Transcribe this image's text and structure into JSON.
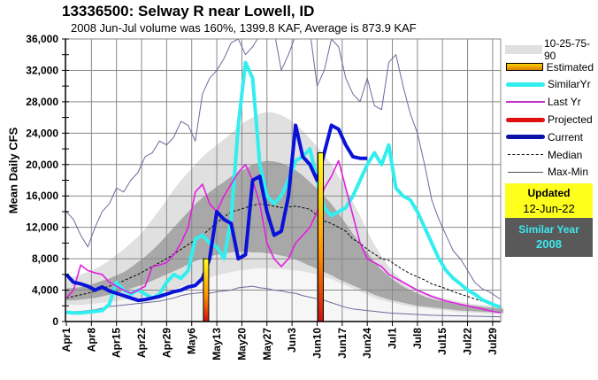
{
  "chart_data": {
    "type": "line",
    "title": "13336500: Selway R near Lowell, ID",
    "subtitle": "2008 Jun-Jul volume was 160%, 1399.8 KAF, Average is 873.9 KAF",
    "ylabel": "Mean Daily CFS",
    "xlabel": "",
    "ylim": [
      0,
      36000
    ],
    "y_ticks": [
      0,
      4000,
      8000,
      12000,
      16000,
      20000,
      24000,
      28000,
      32000,
      36000
    ],
    "y_tick_labels": [
      "0",
      "4,000",
      "8,000",
      "12,000",
      "16,000",
      "20,000",
      "24,000",
      "28,000",
      "32,000",
      "36,000"
    ],
    "x_start": "Apr1",
    "x_days": 122,
    "x_ticks": [
      0,
      7,
      14,
      21,
      28,
      35,
      42,
      49,
      56,
      63,
      70,
      77,
      84,
      91,
      98,
      105,
      112,
      119
    ],
    "x_tick_labels": [
      "Apr1",
      "Apr8",
      "Apr15",
      "Apr22",
      "Apr29",
      "May6",
      "May13",
      "May20",
      "May27",
      "Jun3",
      "Jun10",
      "Jun17",
      "Jun24",
      "Jul1",
      "Jul8",
      "Jul15",
      "Jul22",
      "Jul29"
    ],
    "grid": true,
    "legend_position": "right",
    "day_step": 2,
    "bands": {
      "p10": [
        2200,
        2100,
        2100,
        2200,
        2300,
        2400,
        2500,
        2600,
        2800,
        2900,
        3000,
        3200,
        3400,
        3600,
        3900,
        4100,
        4400,
        4700,
        5000,
        5300,
        5600,
        5900,
        6100,
        6300,
        6500,
        6600,
        6700,
        6800,
        6800,
        6700,
        6700,
        6600,
        6500,
        6400,
        6200,
        6000,
        5700,
        5400,
        5000,
        4600,
        4200,
        3800,
        3400,
        3000,
        2700,
        2500,
        2300,
        2100,
        1900,
        1800,
        1700,
        1600,
        1500,
        1400,
        1300,
        1200,
        1150,
        1100,
        1050,
        1000,
        1000,
        1000
      ],
      "p25": [
        2700,
        2700,
        2800,
        2900,
        3000,
        3200,
        3400,
        3600,
        3900,
        4200,
        4500,
        4800,
        5200,
        5600,
        6000,
        6400,
        6800,
        7300,
        7700,
        8000,
        8300,
        8500,
        8700,
        8800,
        8900,
        8900,
        8800,
        8800,
        8700,
        8600,
        8400,
        8200,
        7900,
        7500,
        7100,
        6700,
        6300,
        5900,
        5400,
        5000,
        4600,
        4200,
        3800,
        3400,
        3100,
        2800,
        2600,
        2400,
        2200,
        2000,
        1900,
        1800,
        1700,
        1600,
        1500,
        1400,
        1350,
        1300,
        1250,
        1200,
        1150,
        1100
      ],
      "p75": [
        4200,
        4300,
        4400,
        4600,
        4900,
        5200,
        5500,
        5900,
        6300,
        6900,
        7600,
        8300,
        9100,
        10000,
        11000,
        12000,
        13000,
        14000,
        15000,
        15800,
        16500,
        17200,
        17800,
        18500,
        19000,
        19500,
        20000,
        20300,
        20500,
        20400,
        20200,
        19800,
        19300,
        18600,
        17800,
        16900,
        16000,
        15000,
        13800,
        12500,
        11200,
        10000,
        8800,
        7600,
        6600,
        5800,
        5100,
        4500,
        4000,
        3600,
        3200,
        2900,
        2700,
        2500,
        2300,
        2200,
        2100,
        2000,
        1900,
        1800,
        1700,
        1600
      ],
      "p90": [
        5500,
        5700,
        6000,
        6300,
        6700,
        7200,
        7800,
        8500,
        9200,
        10000,
        10800,
        11800,
        13000,
        14200,
        15500,
        16800,
        18000,
        19000,
        20000,
        21000,
        21800,
        22500,
        23200,
        24000,
        24800,
        25500,
        26000,
        26500,
        26700,
        26600,
        26300,
        25800,
        25200,
        24300,
        23300,
        22300,
        21200,
        20000,
        18500,
        17000,
        15200,
        13500,
        11500,
        9800,
        8300,
        7000,
        6000,
        5200,
        4600,
        4100,
        3700,
        3400,
        3100,
        2900,
        2700,
        2500,
        2350,
        2200,
        2100,
        2000,
        1900,
        1800
      ]
    },
    "series": [
      {
        "name": "Median",
        "style": "dashed",
        "color": "#000000",
        "values": [
          3000,
          3200,
          3400,
          3600,
          3900,
          4200,
          4500,
          4800,
          5200,
          5600,
          6000,
          6500,
          7000,
          7500,
          8000,
          8600,
          9200,
          9800,
          10400,
          11000,
          11800,
          12600,
          13300,
          14000,
          14200,
          14500,
          14800,
          15000,
          14900,
          14700,
          14500,
          14600,
          14700,
          14500,
          14300,
          13500,
          12800,
          12500,
          12000,
          11500,
          10500,
          10000,
          9200,
          8600,
          8000,
          7800,
          7200,
          6600,
          6100,
          5700,
          5300,
          4800,
          4500,
          4200,
          3800,
          3500,
          3200,
          2900,
          2600,
          2300,
          2100,
          1900
        ]
      },
      {
        "name": "Max-Min (max)",
        "style": "thin",
        "color": "#6a6a9a",
        "values": [
          14000,
          13000,
          11000,
          9500,
          12000,
          14000,
          15000,
          17000,
          16500,
          18000,
          19000,
          21000,
          21500,
          23000,
          22500,
          23500,
          25500,
          25000,
          23000,
          29000,
          31000,
          32000,
          33500,
          35500,
          36000,
          34000,
          35000,
          36500,
          36500,
          37000,
          32000,
          34000,
          36500,
          37000,
          37000,
          30000,
          32000,
          36000,
          35000,
          31000,
          29000,
          28000,
          31000,
          27500,
          27000,
          33000,
          34000,
          30000,
          26500,
          24000,
          20000,
          15500,
          13000,
          11000,
          9000,
          8000,
          6500,
          5000,
          4200,
          3800,
          3200,
          2600
        ]
      },
      {
        "name": "Max-Min (min)",
        "style": "thin",
        "color": "#6a6a9a",
        "values": [
          1200,
          1250,
          1300,
          1400,
          1500,
          1700,
          1900,
          2000,
          2100,
          2200,
          2300,
          2400,
          2500,
          2600,
          2800,
          3000,
          3300,
          3500,
          3600,
          3700,
          3600,
          3800,
          3900,
          4000,
          4300,
          4400,
          4500,
          4300,
          4200,
          4000,
          3900,
          3700,
          3600,
          3300,
          3100,
          2900,
          2700,
          2400,
          2100,
          1800,
          1600,
          1500,
          1400,
          1300,
          1200,
          1100,
          1050,
          1000,
          950,
          900,
          850,
          800,
          780,
          760,
          740,
          720,
          700,
          680,
          660,
          640,
          620,
          600
        ]
      },
      {
        "name": "Last Yr",
        "style": "line",
        "color": "#e020e0",
        "values": [
          3000,
          4000,
          7200,
          6500,
          6200,
          6000,
          5000,
          4500,
          4000,
          3600,
          4000,
          4500,
          7000,
          7200,
          7500,
          8500,
          10000,
          12000,
          16500,
          17500,
          15000,
          14000,
          16000,
          17500,
          19000,
          20000,
          18000,
          15000,
          10000,
          8000,
          7000,
          8000,
          10000,
          11000,
          12000,
          14000,
          17000,
          18500,
          20500,
          17000,
          13500,
          10000,
          8000,
          7500,
          7000,
          6000,
          5500,
          5000,
          4500,
          4000,
          3600,
          3200,
          2900,
          2600,
          2400,
          2200,
          2000,
          1800,
          1600,
          1400,
          1200,
          1100
        ]
      },
      {
        "name": "SimilarYr",
        "style": "line",
        "color": "#33eeee",
        "values": [
          1200,
          1100,
          1100,
          1200,
          1300,
          1400,
          2200,
          5000,
          4000,
          3500,
          4000,
          3500,
          3000,
          3500,
          5000,
          6000,
          5500,
          6500,
          10500,
          11000,
          10000,
          9500,
          8000,
          13000,
          25000,
          33000,
          31000,
          20000,
          16000,
          15000,
          16000,
          18000,
          20500,
          21000,
          22000,
          18000,
          14500,
          13500,
          14000,
          14500,
          16000,
          18000,
          20000,
          21500,
          20000,
          22500,
          17000,
          16000,
          15500,
          14000,
          12000,
          10000,
          8000,
          6500,
          5500,
          4800,
          4000,
          3500,
          2800,
          2400,
          2000,
          1800
        ]
      },
      {
        "name": "Current",
        "style": "thick",
        "color": "#0a12d8",
        "values": [
          6000,
          5000,
          4800,
          4500,
          4000,
          4400,
          3900,
          3600,
          3300,
          3000,
          2700,
          2800,
          3000,
          3200,
          3500,
          3800,
          4000,
          4400,
          4600,
          5500,
          8000,
          14000,
          13000,
          12500,
          8000,
          8500,
          18000,
          18500,
          14000,
          11000,
          11500,
          16000,
          25000,
          21000,
          20000,
          18000,
          21500,
          25000,
          24500,
          22500,
          21000,
          20800,
          20800
        ]
      }
    ],
    "current_days": 42,
    "estimated_bars": [
      {
        "label": "Estimated",
        "day": 39
      },
      {
        "label": "Estimated",
        "day": 71
      }
    ],
    "legend": [
      {
        "key": "band",
        "label": "10-25-75-90"
      },
      {
        "key": "estimated",
        "label": "Estimated"
      },
      {
        "key": "similar",
        "label": "SimilarYr"
      },
      {
        "key": "lastyr",
        "label": "Last Yr"
      },
      {
        "key": "projected",
        "label": "Projected"
      },
      {
        "key": "current",
        "label": "Current"
      },
      {
        "key": "median",
        "label": "Median"
      },
      {
        "key": "maxmin",
        "label": "Max-Min"
      }
    ],
    "colors": {
      "band_outer": "#e0e0e0",
      "band_inner": "#a8a8a8",
      "band_low": "#f6f6f6",
      "current": "#0a12d8",
      "similar": "#33eeee",
      "lastyr": "#e020e0",
      "projected": "#e01010",
      "maxmin": "#6a6a9a"
    }
  },
  "info": {
    "updated_label": "Updated",
    "updated_date": "12-Jun-22",
    "similar_label": "Similar Year",
    "similar_year": "2008"
  }
}
